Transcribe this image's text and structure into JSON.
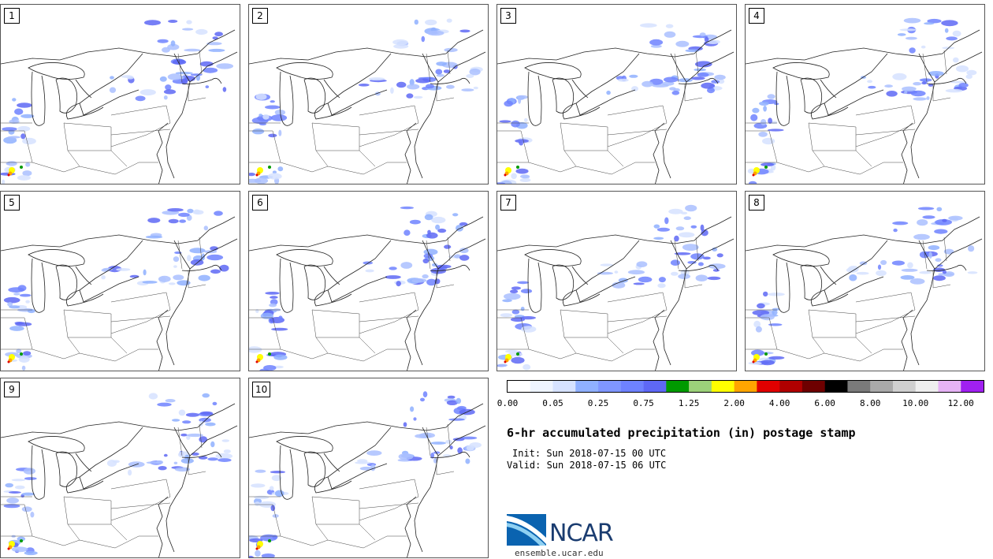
{
  "panels": [
    {
      "label": "1"
    },
    {
      "label": "2"
    },
    {
      "label": "3"
    },
    {
      "label": "4"
    },
    {
      "label": "5"
    },
    {
      "label": "6"
    },
    {
      "label": "7"
    },
    {
      "label": "8"
    },
    {
      "label": "9"
    },
    {
      "label": "10"
    }
  ],
  "colorbar": {
    "colors": [
      "#ffffff",
      "#eef4ff",
      "#d6e2ff",
      "#8fb0ff",
      "#7f96ff",
      "#6e82ff",
      "#5e68f5",
      "#009a00",
      "#9cd17a",
      "#ffff00",
      "#ffa500",
      "#e00000",
      "#b00000",
      "#6e0000",
      "#000000",
      "#7a7a7a",
      "#a9a9a9",
      "#cfcfcf",
      "#eeeeee",
      "#e6b3f5",
      "#a020f0"
    ],
    "tick_labels": [
      "0.00",
      "0.05",
      "0.25",
      "0.75",
      "1.25",
      "2.00",
      "4.00",
      "6.00",
      "8.00",
      "10.00",
      "12.00"
    ]
  },
  "title": "6-hr accumulated precipitation (in) postage stamp",
  "init": "Init: Sun 2018-07-15 00 UTC",
  "valid": "Valid: Sun 2018-07-15 06 UTC",
  "logo": {
    "text": "NCAR",
    "url_text": "ensemble.ucar.edu"
  }
}
